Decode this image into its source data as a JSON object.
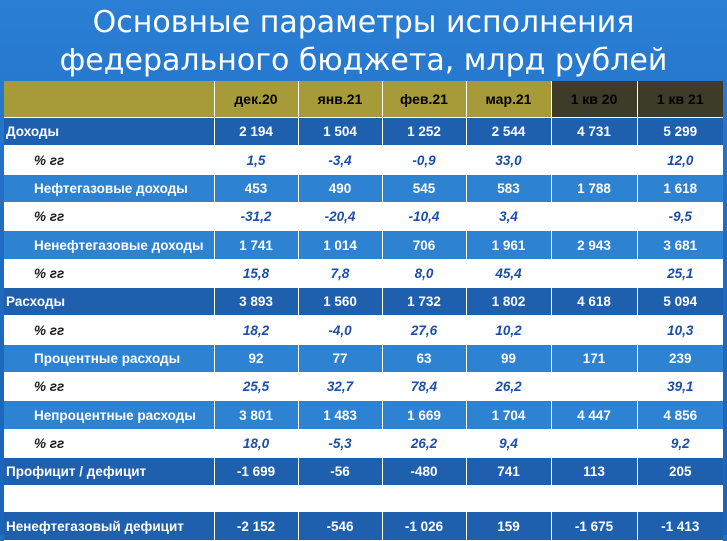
{
  "title": {
    "line1": "Основные параметры исполнения",
    "line2": "федерального бюджета, млрд рублей"
  },
  "columns": [
    "дек.20",
    "янв.21",
    "фев.21",
    "мар.21",
    "1 кв 20",
    "1 кв 21"
  ],
  "rows": [
    {
      "label": "Доходы",
      "values": [
        "2 194",
        "1 504",
        "1 252",
        "2 544",
        "4 731",
        "5 299"
      ]
    },
    {
      "label": "% гг",
      "values": [
        "1,5",
        "-3,4",
        "-0,9",
        "33,0",
        "",
        "12,0"
      ]
    },
    {
      "label": "Нефтегазовые доходы",
      "values": [
        "453",
        "490",
        "545",
        "583",
        "1 788",
        "1 618"
      ]
    },
    {
      "label": "% гг",
      "values": [
        "-31,2",
        "-20,4",
        "-10,4",
        "3,4",
        "",
        "-9,5"
      ]
    },
    {
      "label": "Ненефтегазовые доходы",
      "values": [
        "1 741",
        "1 014",
        "706",
        "1 961",
        "2 943",
        "3 681"
      ]
    },
    {
      "label": "% гг",
      "values": [
        "15,8",
        "7,8",
        "8,0",
        "45,4",
        "",
        "25,1"
      ]
    },
    {
      "label": "Расходы",
      "values": [
        "3 893",
        "1 560",
        "1 732",
        "1 802",
        "4 618",
        "5 094"
      ]
    },
    {
      "label": "% гг",
      "values": [
        "18,2",
        "-4,0",
        "27,6",
        "10,2",
        "",
        "10,3"
      ]
    },
    {
      "label": "Процентные расходы",
      "values": [
        "92",
        "77",
        "63",
        "99",
        "171",
        "239"
      ]
    },
    {
      "label": "% гг",
      "values": [
        "25,5",
        "32,7",
        "78,4",
        "26,2",
        "",
        "39,1"
      ]
    },
    {
      "label": "Непроцентные расходы",
      "values": [
        "3 801",
        "1 483",
        "1 669",
        "1 704",
        "4 447",
        "4 856"
      ]
    },
    {
      "label": "% гг",
      "values": [
        "18,0",
        "-5,3",
        "26,2",
        "9,4",
        "",
        "9,2"
      ]
    },
    {
      "label": "Профицит / дефицит",
      "values": [
        "-1 699",
        "-56",
        "-480",
        "741",
        "113",
        "205"
      ]
    },
    {
      "label": "Ненефтегазовый дефицит",
      "values": [
        "-2 152",
        "-546",
        "-1 026",
        "159",
        "-1 675",
        "-1 413"
      ]
    }
  ],
  "colors": {
    "background": "#1e6cc2",
    "header_gold": "#a79a39",
    "header_dark": "#3c3c28",
    "negative": "#c0182a",
    "highlight_yellow": "#f1ef1c",
    "percent_text": "#1b4ea8"
  }
}
